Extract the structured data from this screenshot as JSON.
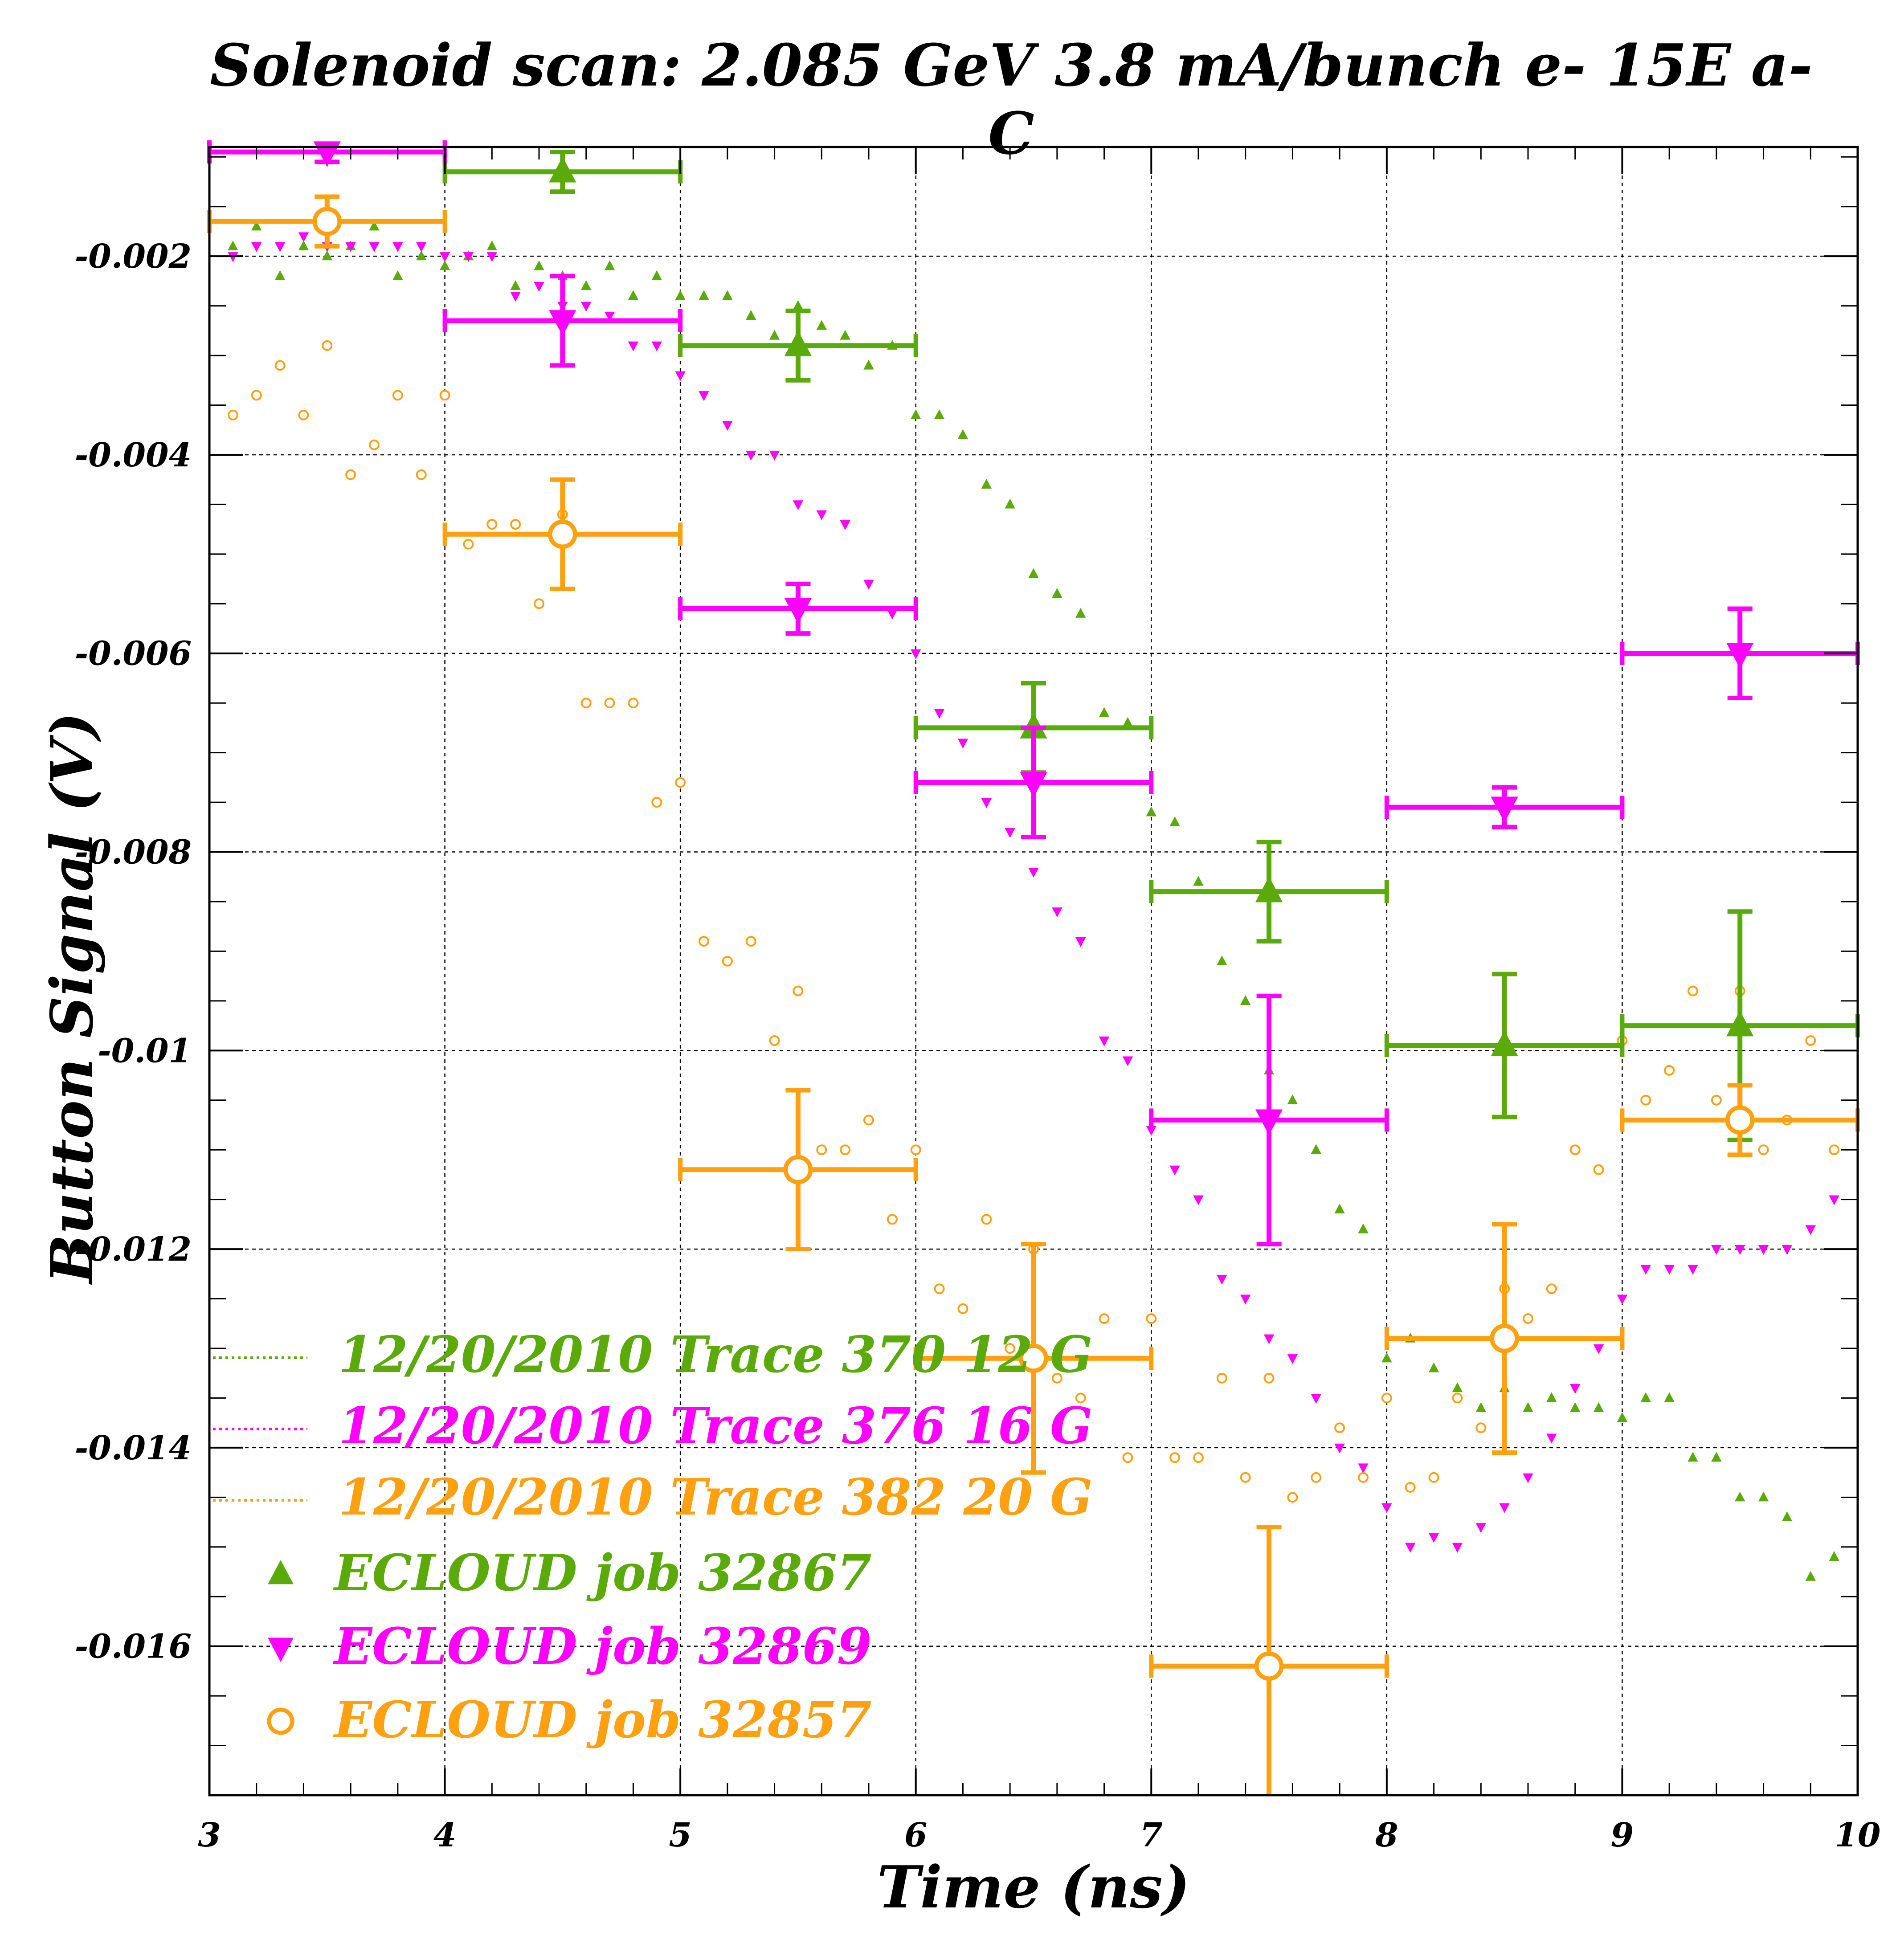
{
  "chart_data": {
    "type": "scatter",
    "title": "Solenoid scan: 2.085 GeV 3.8 mA/bunch e- 15E a-C",
    "xlabel": "Time (ns)",
    "ylabel": "Button Signal (V)",
    "xlim": [
      3,
      10
    ],
    "ylim": [
      -0.0175,
      -0.0009
    ],
    "x_ticks": [
      "3",
      "4",
      "5",
      "6",
      "7",
      "8",
      "9",
      "10"
    ],
    "y_ticks": [
      "-0.002",
      "-0.004",
      "-0.006",
      "-0.008",
      "-0.01",
      "-0.012",
      "-0.014",
      "-0.016"
    ],
    "grid": true,
    "legend_position": "bottom-left",
    "legend": [
      {
        "label": "12/20/2010 Trace 370  12 G",
        "color": "#5aaa0a",
        "marker": "dotted-line"
      },
      {
        "label": "12/20/2010 Trace 376  16 G",
        "color": "#ff00ff",
        "marker": "dotted-line"
      },
      {
        "label": "12/20/2010 Trace 382  20 G",
        "color": "#ffa010",
        "marker": "dotted-line"
      },
      {
        "label": "ECLOUD job 32867",
        "color": "#5aaa0a",
        "marker": "triangle-up"
      },
      {
        "label": "ECLOUD job 32869",
        "color": "#ff00ff",
        "marker": "triangle-down"
      },
      {
        "label": "ECLOUD job 32857",
        "color": "#ffa010",
        "marker": "open-circle"
      }
    ],
    "traces": [
      {
        "name": "12/20/2010 Trace 370  12 G",
        "color": "#5aaa0a",
        "marker": "small-triangle-up",
        "x": [
          3.1,
          3.2,
          3.3,
          3.4,
          3.5,
          3.6,
          3.7,
          3.8,
          3.9,
          4.0,
          4.1,
          4.2,
          4.3,
          4.4,
          4.5,
          4.6,
          4.7,
          4.8,
          4.9,
          5.0,
          5.1,
          5.2,
          5.3,
          5.4,
          5.5,
          5.6,
          5.7,
          5.8,
          5.9,
          6.0,
          6.1,
          6.2,
          6.3,
          6.4,
          6.5,
          6.6,
          6.7,
          6.8,
          6.9,
          7.0,
          7.1,
          7.2,
          7.3,
          7.4,
          7.5,
          7.6,
          7.7,
          7.8,
          7.9,
          8.0,
          8.1,
          8.2,
          8.3,
          8.4,
          8.5,
          8.6,
          8.7,
          8.8,
          8.9,
          9.0,
          9.1,
          9.2,
          9.3,
          9.4,
          9.5,
          9.6,
          9.7,
          9.8,
          9.9
        ],
        "y": [
          -0.0019,
          -0.0017,
          -0.0022,
          -0.0019,
          -0.002,
          -0.0019,
          -0.0017,
          -0.0022,
          -0.002,
          -0.0021,
          -0.002,
          -0.0019,
          -0.0023,
          -0.0021,
          -0.0022,
          -0.0023,
          -0.0021,
          -0.0024,
          -0.0022,
          -0.0024,
          -0.0024,
          -0.0024,
          -0.0026,
          -0.0028,
          -0.0025,
          -0.0027,
          -0.0028,
          -0.0031,
          -0.0029,
          -0.0036,
          -0.0036,
          -0.0038,
          -0.0043,
          -0.0045,
          -0.0052,
          -0.0054,
          -0.0056,
          -0.0066,
          -0.0067,
          -0.0076,
          -0.0077,
          -0.0083,
          -0.0091,
          -0.0095,
          -0.0102,
          -0.0105,
          -0.011,
          -0.0116,
          -0.0118,
          -0.0131,
          -0.0129,
          -0.0132,
          -0.0134,
          -0.0136,
          -0.0134,
          -0.0136,
          -0.0135,
          -0.0136,
          -0.0136,
          -0.0137,
          -0.0135,
          -0.0135,
          -0.0141,
          -0.0141,
          -0.0145,
          -0.0145,
          -0.0147,
          -0.0153,
          -0.0151
        ]
      },
      {
        "name": "12/20/2010 Trace 376  16 G",
        "color": "#ff00ff",
        "marker": "small-triangle-down",
        "x": [
          3.1,
          3.2,
          3.3,
          3.4,
          3.5,
          3.6,
          3.7,
          3.8,
          3.9,
          4.0,
          4.1,
          4.2,
          4.3,
          4.4,
          4.5,
          4.6,
          4.7,
          4.8,
          4.9,
          5.0,
          5.1,
          5.2,
          5.3,
          5.4,
          5.5,
          5.6,
          5.7,
          5.8,
          5.9,
          6.0,
          6.1,
          6.2,
          6.3,
          6.4,
          6.5,
          6.6,
          6.7,
          6.8,
          6.9,
          7.0,
          7.1,
          7.2,
          7.3,
          7.4,
          7.5,
          7.6,
          7.7,
          7.8,
          7.9,
          8.0,
          8.1,
          8.2,
          8.3,
          8.4,
          8.5,
          8.6,
          8.7,
          8.8,
          8.9,
          9.0,
          9.1,
          9.2,
          9.3,
          9.4,
          9.5,
          9.6,
          9.7,
          9.8,
          9.9
        ],
        "y": [
          -0.002,
          -0.0019,
          -0.0019,
          -0.0018,
          -0.0019,
          -0.0019,
          -0.0019,
          -0.0019,
          -0.0019,
          -0.002,
          -0.002,
          -0.002,
          -0.0024,
          -0.0023,
          -0.0025,
          -0.0025,
          -0.0026,
          -0.0029,
          -0.0029,
          -0.0032,
          -0.0034,
          -0.0037,
          -0.004,
          -0.004,
          -0.0045,
          -0.0046,
          -0.0047,
          -0.0053,
          -0.0056,
          -0.006,
          -0.0066,
          -0.0069,
          -0.0075,
          -0.0078,
          -0.0082,
          -0.0086,
          -0.0089,
          -0.0099,
          -0.0101,
          -0.0108,
          -0.0112,
          -0.0115,
          -0.0123,
          -0.0125,
          -0.0129,
          -0.0131,
          -0.0135,
          -0.014,
          -0.0142,
          -0.0146,
          -0.015,
          -0.0149,
          -0.015,
          -0.0148,
          -0.0146,
          -0.0143,
          -0.0139,
          -0.0134,
          -0.013,
          -0.0125,
          -0.0122,
          -0.0122,
          -0.0122,
          -0.012,
          -0.012,
          -0.012,
          -0.012,
          -0.0118,
          -0.0115
        ]
      },
      {
        "name": "12/20/2010 Trace 382  20 G",
        "color": "#ffa010",
        "marker": "small-open-circle",
        "x": [
          3.1,
          3.2,
          3.3,
          3.4,
          3.5,
          3.6,
          3.7,
          3.8,
          3.9,
          4.0,
          4.1,
          4.2,
          4.3,
          4.4,
          4.5,
          4.6,
          4.7,
          4.8,
          4.9,
          5.0,
          5.1,
          5.2,
          5.3,
          5.4,
          5.5,
          5.6,
          5.7,
          5.8,
          5.9,
          6.0,
          6.1,
          6.2,
          6.3,
          6.4,
          6.5,
          6.6,
          6.7,
          6.8,
          6.9,
          7.0,
          7.1,
          7.2,
          7.3,
          7.4,
          7.5,
          7.6,
          7.7,
          7.8,
          7.9,
          8.0,
          8.1,
          8.2,
          8.3,
          8.4,
          8.5,
          8.6,
          8.7,
          8.8,
          8.9,
          9.0,
          9.1,
          9.2,
          9.3,
          9.4,
          9.5,
          9.6,
          9.7,
          9.8,
          9.9
        ],
        "y": [
          -0.0036,
          -0.0034,
          -0.0031,
          -0.0036,
          -0.0029,
          -0.0042,
          -0.0039,
          -0.0034,
          -0.0042,
          -0.0034,
          -0.0049,
          -0.0047,
          -0.0047,
          -0.0055,
          -0.0046,
          -0.0065,
          -0.0065,
          -0.0065,
          -0.0075,
          -0.0073,
          -0.0089,
          -0.0091,
          -0.0089,
          -0.0099,
          -0.0094,
          -0.011,
          -0.011,
          -0.0107,
          -0.0117,
          -0.011,
          -0.0124,
          -0.0126,
          -0.0117,
          -0.013,
          -0.012,
          -0.0133,
          -0.0135,
          -0.0127,
          -0.0141,
          -0.0127,
          -0.0141,
          -0.0141,
          -0.0133,
          -0.0143,
          -0.0133,
          -0.0145,
          -0.0143,
          -0.0138,
          -0.0143,
          -0.0135,
          -0.0144,
          -0.0143,
          -0.0135,
          -0.0138,
          -0.0124,
          -0.0127,
          -0.0124,
          -0.011,
          -0.0112,
          -0.0099,
          -0.0105,
          -0.0102,
          -0.0094,
          -0.0105,
          -0.0094,
          -0.011,
          -0.0107,
          -0.0099,
          -0.011
        ]
      }
    ],
    "series": [
      {
        "name": "ECLOUD job 32867",
        "color": "#5aaa0a",
        "marker": "triangle-up",
        "x": [
          4.5,
          5.5,
          6.5,
          7.5,
          8.5,
          9.5
        ],
        "y": [
          -0.00115,
          -0.0029,
          -0.00675,
          -0.0084,
          -0.00995,
          -0.00975
        ],
        "y_err": [
          0.0002,
          0.00035,
          0.00045,
          0.0005,
          0.00072,
          0.00115
        ],
        "x_err": [
          0.5,
          0.5,
          0.5,
          0.5,
          0.5,
          0.5
        ]
      },
      {
        "name": "ECLOUD job 32869",
        "color": "#ff00ff",
        "marker": "triangle-down",
        "x": [
          3.5,
          4.5,
          5.5,
          6.5,
          7.5,
          8.5,
          9.5
        ],
        "y": [
          -0.00095,
          -0.00265,
          -0.00555,
          -0.0073,
          -0.0107,
          -0.00755,
          -0.006
        ],
        "y_err": [
          0.0001,
          0.00045,
          0.00025,
          0.00055,
          0.00125,
          0.0002,
          0.00045
        ],
        "x_err": [
          0.5,
          0.5,
          0.5,
          0.5,
          0.5,
          0.5,
          0.5
        ]
      },
      {
        "name": "ECLOUD job 32857",
        "color": "#ffa010",
        "marker": "open-circle",
        "x": [
          3.5,
          4.5,
          5.5,
          6.5,
          7.5,
          8.5,
          9.5
        ],
        "y": [
          -0.00165,
          -0.0048,
          -0.0112,
          -0.0131,
          -0.0162,
          -0.0129,
          -0.0107
        ],
        "y_err": [
          0.00025,
          0.00055,
          0.0008,
          0.00115,
          0.0014,
          0.00115,
          0.00035
        ],
        "x_err": [
          0.5,
          0.5,
          0.5,
          0.5,
          0.5,
          0.5,
          0.5
        ]
      }
    ]
  }
}
